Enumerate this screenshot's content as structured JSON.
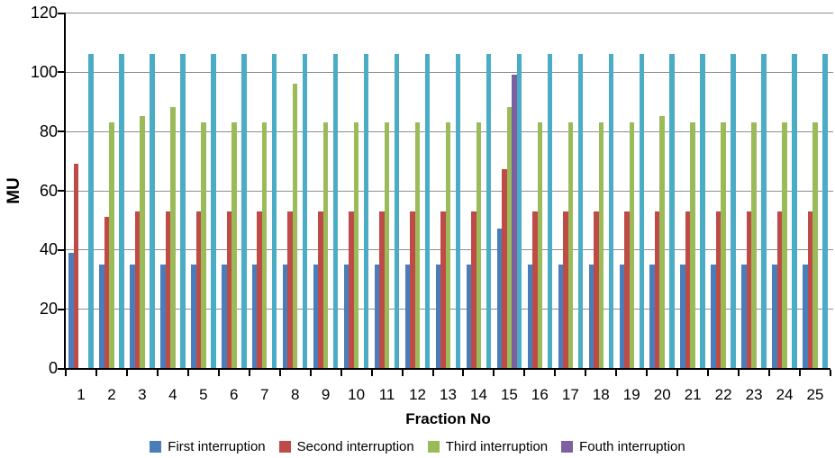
{
  "chart_data": {
    "type": "bar",
    "title": "",
    "xlabel": "Fraction No",
    "ylabel": "MU",
    "ylim": [
      0,
      120
    ],
    "yticks": [
      0,
      20,
      40,
      60,
      80,
      100,
      120
    ],
    "grid": true,
    "gridline_color": "#8e8e8e",
    "legend_position": "bottom",
    "note": "A fifth unlabeled cyan series (~106 MU, identical for every fraction) is drawn rightmost in each group but has no legend entry. Fraction 1 has no third-interruption bar; the fourth-interruption bar appears only at fraction 15.",
    "categories": [
      1,
      2,
      3,
      4,
      5,
      6,
      7,
      8,
      9,
      10,
      11,
      12,
      13,
      14,
      15,
      16,
      17,
      18,
      19,
      20,
      21,
      22,
      23,
      24,
      25
    ],
    "series": [
      {
        "name": "First interruption",
        "color": "#4a7ebb",
        "in_legend": true,
        "values": [
          39,
          35,
          35,
          35,
          35,
          35,
          35,
          35,
          35,
          35,
          35,
          35,
          35,
          35,
          47,
          35,
          35,
          35,
          35,
          35,
          35,
          35,
          35,
          35,
          35
        ]
      },
      {
        "name": "Second interruption",
        "color": "#be4b48",
        "in_legend": true,
        "values": [
          69,
          51,
          53,
          53,
          53,
          53,
          53,
          53,
          53,
          53,
          53,
          53,
          53,
          53,
          67,
          53,
          53,
          53,
          53,
          53,
          53,
          53,
          53,
          53,
          53
        ]
      },
      {
        "name": "Third interruption",
        "color": "#9bbb59",
        "in_legend": true,
        "values": [
          0,
          83,
          85,
          88,
          83,
          83,
          83,
          96,
          83,
          83,
          83,
          83,
          83,
          83,
          88,
          83,
          83,
          83,
          83,
          85,
          83,
          83,
          83,
          83,
          83
        ]
      },
      {
        "name": "Fouth interruption",
        "color": "#7d60a0",
        "in_legend": true,
        "values": [
          0,
          0,
          0,
          0,
          0,
          0,
          0,
          0,
          0,
          0,
          0,
          0,
          0,
          0,
          99,
          0,
          0,
          0,
          0,
          0,
          0,
          0,
          0,
          0,
          0
        ]
      },
      {
        "name": "",
        "color": "#4aacc5",
        "in_legend": false,
        "values": [
          106,
          106,
          106,
          106,
          106,
          106,
          106,
          106,
          106,
          106,
          106,
          106,
          106,
          106,
          106,
          106,
          106,
          106,
          106,
          106,
          106,
          106,
          106,
          106,
          106
        ]
      }
    ]
  }
}
